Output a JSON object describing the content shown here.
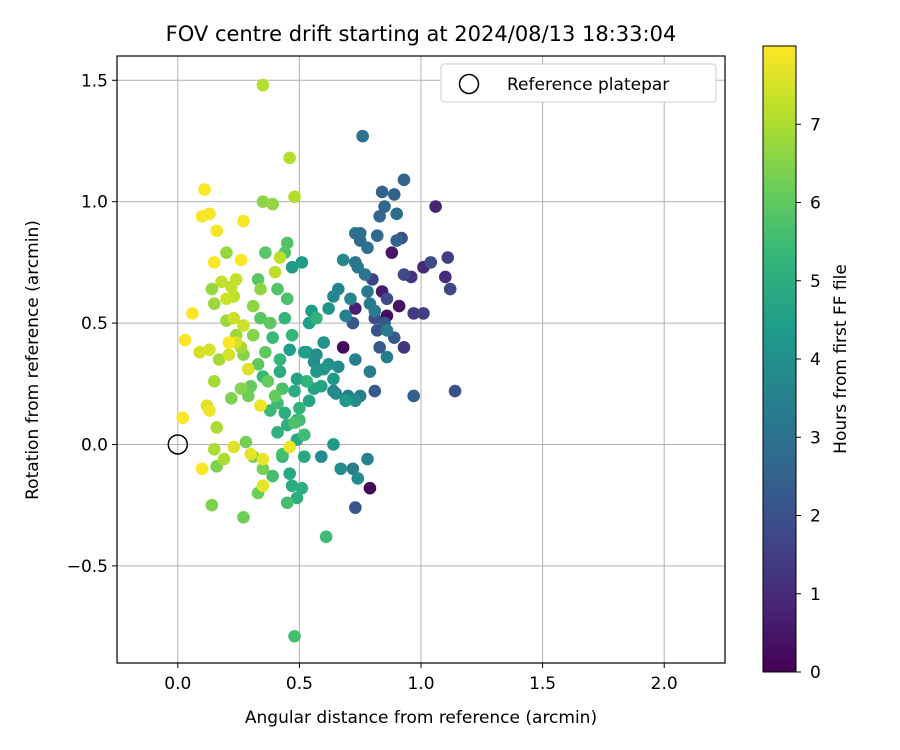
{
  "chart_data": {
    "type": "scatter",
    "title": "FOV centre drift starting at 2024/08/13 18:33:04",
    "xlabel": "Angular distance from reference (arcmin)",
    "ylabel": "Rotation from reference (arcmin)",
    "xlim": [
      -0.25,
      2.25
    ],
    "ylim": [
      -0.9,
      1.6
    ],
    "xticks": [
      0.0,
      0.5,
      1.0,
      1.5,
      2.0
    ],
    "xtick_labels": [
      "0.0",
      "0.5",
      "1.0",
      "1.5",
      "2.0"
    ],
    "yticks": [
      -0.5,
      0.0,
      0.5,
      1.0,
      1.5
    ],
    "ytick_labels": [
      "−0.5",
      "0.0",
      "0.5",
      "1.0",
      "1.5"
    ],
    "grid": true,
    "legend": {
      "placement": "top-right",
      "entries": [
        {
          "label": "Reference platepar",
          "marker": "open-circle"
        }
      ]
    },
    "reference_point": {
      "x": 0.0,
      "y": 0.0
    },
    "colorbar": {
      "label": "Hours from first FF file",
      "colormap": "viridis",
      "range": [
        0,
        8
      ],
      "ticks": [
        0,
        1,
        2,
        3,
        4,
        5,
        6,
        7
      ],
      "tick_labels": [
        "0",
        "1",
        "2",
        "3",
        "4",
        "5",
        "6",
        "7"
      ]
    },
    "colormap_stops": [
      "#440154",
      "#482878",
      "#3e4989",
      "#31688e",
      "#26828e",
      "#1f9e89",
      "#35b779",
      "#6ece58",
      "#b5de2b",
      "#fde725"
    ],
    "series": [
      {
        "points": [
          [
            0.79,
            -0.18,
            0.1
          ],
          [
            0.91,
            0.57,
            0.4
          ],
          [
            1.06,
            0.98,
            0.8
          ],
          [
            0.86,
            0.53,
            0.3
          ],
          [
            0.84,
            0.63,
            0.6
          ],
          [
            0.68,
            0.4,
            0.2
          ],
          [
            1.01,
            0.73,
            0.9
          ],
          [
            0.96,
            0.69,
            1.2
          ],
          [
            1.1,
            0.69,
            1.0
          ],
          [
            0.88,
            0.79,
            0.5
          ],
          [
            0.73,
            0.56,
            0.7
          ],
          [
            0.93,
            0.4,
            1.3
          ],
          [
            0.97,
            0.54,
            1.4
          ],
          [
            1.11,
            0.77,
            1.5
          ],
          [
            1.01,
            0.54,
            1.5
          ],
          [
            0.8,
            0.68,
            1.6
          ],
          [
            1.12,
            0.64,
            1.7
          ],
          [
            0.86,
            0.6,
            1.8
          ],
          [
            0.93,
            0.7,
            1.8
          ],
          [
            1.04,
            0.75,
            1.9
          ],
          [
            0.92,
            0.85,
            2.0
          ],
          [
            0.81,
            0.52,
            2.0
          ],
          [
            1.14,
            0.22,
            2.0
          ],
          [
            0.73,
            -0.26,
            2.1
          ],
          [
            0.82,
            0.47,
            2.1
          ],
          [
            0.72,
            0.5,
            2.2
          ],
          [
            0.85,
            0.5,
            2.2
          ],
          [
            0.89,
            0.44,
            2.3
          ],
          [
            0.83,
            0.4,
            2.3
          ],
          [
            0.81,
            0.22,
            2.3
          ],
          [
            0.97,
            0.2,
            2.4
          ],
          [
            0.9,
            0.84,
            2.5
          ],
          [
            0.84,
            1.04,
            2.5
          ],
          [
            0.89,
            1.03,
            2.5
          ],
          [
            0.93,
            1.09,
            2.6
          ],
          [
            0.83,
            0.94,
            2.6
          ],
          [
            0.85,
            0.98,
            2.7
          ],
          [
            0.82,
            0.86,
            2.7
          ],
          [
            0.9,
            0.95,
            2.8
          ],
          [
            0.75,
            0.84,
            2.8
          ],
          [
            0.75,
            0.87,
            2.9
          ],
          [
            0.73,
            0.87,
            2.9
          ],
          [
            0.76,
            1.27,
            3.0
          ],
          [
            0.78,
            0.81,
            3.0
          ],
          [
            0.73,
            0.75,
            3.1
          ],
          [
            0.77,
            0.7,
            3.1
          ],
          [
            0.78,
            0.63,
            3.2
          ],
          [
            0.74,
            0.73,
            3.2
          ],
          [
            0.79,
            0.58,
            3.3
          ],
          [
            0.81,
            0.55,
            3.3
          ],
          [
            0.86,
            0.47,
            3.3
          ],
          [
            0.86,
            0.36,
            3.3
          ],
          [
            0.79,
            0.3,
            3.4
          ],
          [
            0.75,
            0.2,
            3.4
          ],
          [
            0.72,
            -0.1,
            3.4
          ],
          [
            0.78,
            -0.06,
            3.5
          ],
          [
            0.73,
            0.35,
            3.5
          ],
          [
            0.7,
            0.2,
            3.5
          ],
          [
            0.64,
            0.22,
            3.6
          ],
          [
            0.69,
            0.53,
            3.6
          ],
          [
            0.71,
            0.6,
            3.7
          ],
          [
            0.68,
            0.76,
            3.7
          ],
          [
            0.64,
            0.61,
            3.7
          ],
          [
            0.66,
            0.64,
            3.7
          ],
          [
            0.66,
            0.32,
            3.8
          ],
          [
            0.65,
            0.21,
            3.8
          ],
          [
            0.59,
            -0.05,
            3.8
          ],
          [
            0.74,
            -0.14,
            3.9
          ],
          [
            0.67,
            -0.1,
            3.9
          ],
          [
            0.73,
            0.18,
            3.9
          ],
          [
            0.57,
            0.37,
            4.0
          ],
          [
            0.62,
            0.33,
            4.0
          ],
          [
            0.56,
            0.34,
            4.0
          ],
          [
            0.62,
            0.56,
            4.1
          ],
          [
            0.6,
            0.42,
            4.1
          ],
          [
            0.6,
            0.31,
            4.2
          ],
          [
            0.53,
            0.38,
            4.2
          ],
          [
            0.57,
            0.3,
            4.2
          ],
          [
            0.64,
            0.27,
            4.3
          ],
          [
            0.69,
            0.18,
            4.3
          ],
          [
            0.64,
            0.0,
            4.3
          ],
          [
            0.51,
            0.75,
            4.4
          ],
          [
            0.47,
            0.73,
            4.4
          ],
          [
            0.55,
            0.55,
            4.4
          ],
          [
            0.54,
            0.5,
            4.5
          ],
          [
            0.52,
            0.38,
            4.5
          ],
          [
            0.46,
            0.39,
            4.5
          ],
          [
            0.49,
            0.27,
            4.6
          ],
          [
            0.56,
            0.23,
            4.6
          ],
          [
            0.59,
            0.24,
            4.6
          ],
          [
            0.54,
            0.18,
            4.7
          ],
          [
            0.49,
            0.1,
            4.7
          ],
          [
            0.49,
            0.02,
            4.8
          ],
          [
            0.52,
            -0.05,
            4.8
          ],
          [
            0.46,
            -0.12,
            4.8
          ],
          [
            0.47,
            -0.17,
            4.9
          ],
          [
            0.42,
            0.3,
            4.9
          ],
          [
            0.48,
            0.22,
            4.9
          ],
          [
            0.44,
            0.13,
            5.0
          ],
          [
            0.49,
            -0.22,
            5.0
          ],
          [
            0.51,
            -0.18,
            5.0
          ],
          [
            0.43,
            -0.05,
            5.1
          ],
          [
            0.41,
            0.05,
            5.1
          ],
          [
            0.45,
            0.08,
            5.1
          ],
          [
            0.5,
            0.15,
            5.2
          ],
          [
            0.53,
            0.26,
            5.2
          ],
          [
            0.57,
            0.52,
            5.2
          ],
          [
            0.44,
            0.52,
            5.3
          ],
          [
            0.47,
            0.45,
            5.3
          ],
          [
            0.42,
            0.35,
            5.3
          ],
          [
            0.39,
            0.44,
            5.4
          ],
          [
            0.35,
            0.28,
            5.4
          ],
          [
            0.38,
            0.14,
            5.4
          ],
          [
            0.41,
            0.17,
            5.5
          ],
          [
            0.5,
            0.1,
            5.5
          ],
          [
            0.52,
            0.04,
            5.5
          ],
          [
            0.61,
            -0.38,
            5.5
          ],
          [
            0.48,
            -0.79,
            5.6
          ],
          [
            0.45,
            -0.24,
            5.6
          ],
          [
            0.39,
            -0.13,
            5.6
          ],
          [
            0.43,
            -0.04,
            5.6
          ],
          [
            0.48,
            0.09,
            5.7
          ],
          [
            0.43,
            0.23,
            5.7
          ],
          [
            0.45,
            0.6,
            5.7
          ],
          [
            0.41,
            0.64,
            5.8
          ],
          [
            0.44,
            0.79,
            5.8
          ],
          [
            0.45,
            0.83,
            5.8
          ],
          [
            0.36,
            0.79,
            5.9
          ],
          [
            0.33,
            0.68,
            5.9
          ],
          [
            0.34,
            0.52,
            5.9
          ],
          [
            0.38,
            0.5,
            6.0
          ],
          [
            0.36,
            0.38,
            6.0
          ],
          [
            0.33,
            0.33,
            6.0
          ],
          [
            0.37,
            0.26,
            6.1
          ],
          [
            0.4,
            0.2,
            6.1
          ],
          [
            0.3,
            0.24,
            6.1
          ],
          [
            0.29,
            0.2,
            6.2
          ],
          [
            0.27,
            -0.3,
            6.2
          ],
          [
            0.33,
            -0.2,
            6.2
          ],
          [
            0.35,
            -0.1,
            6.3
          ],
          [
            0.28,
            0.01,
            6.3
          ],
          [
            0.31,
            -0.05,
            6.3
          ],
          [
            0.14,
            -0.25,
            6.4
          ],
          [
            0.16,
            -0.09,
            6.4
          ],
          [
            0.22,
            0.19,
            6.4
          ],
          [
            0.26,
            0.23,
            6.5
          ],
          [
            0.27,
            0.37,
            6.5
          ],
          [
            0.31,
            0.45,
            6.5
          ],
          [
            0.31,
            0.57,
            6.6
          ],
          [
            0.34,
            0.64,
            6.6
          ],
          [
            0.35,
            1.0,
            6.6
          ],
          [
            0.39,
            0.99,
            6.7
          ],
          [
            0.2,
            0.79,
            6.7
          ],
          [
            0.14,
            0.64,
            6.7
          ],
          [
            0.15,
            0.58,
            6.8
          ],
          [
            0.2,
            0.51,
            6.8
          ],
          [
            0.24,
            0.45,
            6.8
          ],
          [
            0.26,
            0.4,
            6.9
          ],
          [
            0.17,
            0.35,
            6.9
          ],
          [
            0.15,
            0.26,
            6.9
          ],
          [
            0.16,
            0.07,
            7.0
          ],
          [
            0.15,
            -0.02,
            7.0
          ],
          [
            0.19,
            -0.06,
            7.0
          ],
          [
            0.35,
            1.48,
            7.1
          ],
          [
            0.46,
            1.18,
            7.1
          ],
          [
            0.48,
            1.02,
            7.1
          ],
          [
            0.42,
            0.77,
            7.2
          ],
          [
            0.4,
            0.71,
            7.2
          ],
          [
            0.23,
            0.61,
            7.2
          ],
          [
            0.24,
            0.68,
            7.3
          ],
          [
            0.22,
            0.65,
            7.3
          ],
          [
            0.18,
            0.67,
            7.3
          ],
          [
            0.2,
            0.6,
            7.4
          ],
          [
            0.23,
            0.52,
            7.4
          ],
          [
            0.27,
            0.49,
            7.4
          ],
          [
            0.24,
            0.42,
            7.5
          ],
          [
            0.21,
            0.37,
            7.5
          ],
          [
            0.13,
            0.39,
            7.5
          ],
          [
            0.09,
            0.38,
            7.5
          ],
          [
            0.12,
            0.16,
            7.6
          ],
          [
            0.29,
            0.31,
            7.6
          ],
          [
            0.23,
            -0.01,
            7.6
          ],
          [
            0.3,
            -0.04,
            7.7
          ],
          [
            0.35,
            -0.06,
            7.7
          ],
          [
            0.35,
            -0.17,
            7.7
          ],
          [
            0.46,
            -0.01,
            7.8
          ],
          [
            0.34,
            0.16,
            7.8
          ],
          [
            0.13,
            0.14,
            7.8
          ],
          [
            0.1,
            0.94,
            7.9
          ],
          [
            0.13,
            0.95,
            7.9
          ],
          [
            0.16,
            0.88,
            7.9
          ],
          [
            0.27,
            0.92,
            7.9
          ],
          [
            0.11,
            1.05,
            8.0
          ],
          [
            0.15,
            0.75,
            8.0
          ],
          [
            0.26,
            0.76,
            8.0
          ],
          [
            0.06,
            0.54,
            8.0
          ],
          [
            0.03,
            0.43,
            8.0
          ],
          [
            0.21,
            0.42,
            8.0
          ],
          [
            0.02,
            0.11,
            8.0
          ],
          [
            0.1,
            -0.1,
            8.0
          ]
        ]
      }
    ]
  }
}
